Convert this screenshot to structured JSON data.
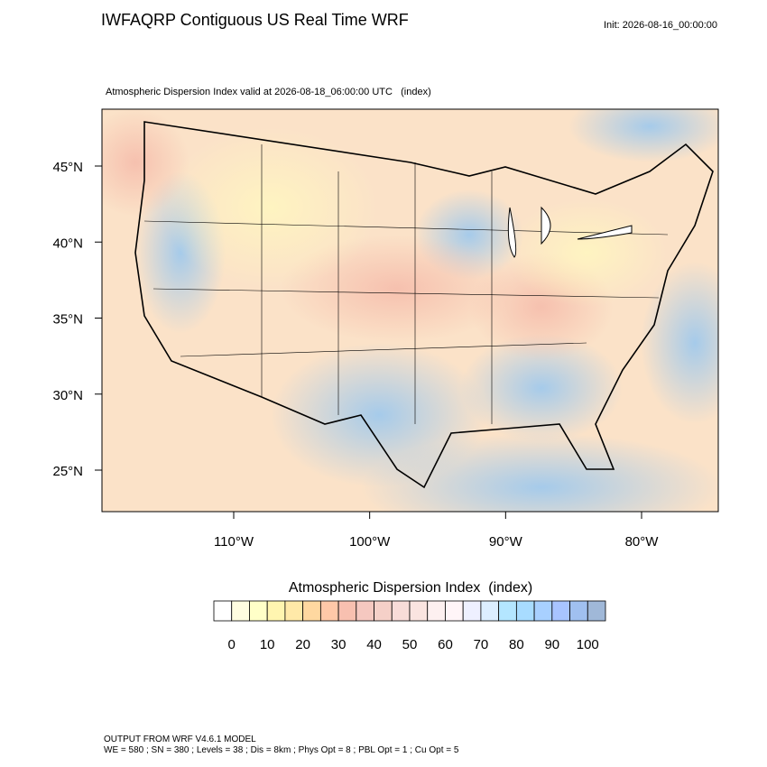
{
  "header": {
    "title": "IWFAQRP Contiguous US Real Time WRF",
    "init": "Init: 2026-08-16_00:00:00"
  },
  "map": {
    "subtitle": "Atmospheric Dispersion Index valid at 2026-08-18_06:00:00 UTC   (index)",
    "lat_ticks": [
      {
        "value": 45,
        "label": "45°N"
      },
      {
        "value": 40,
        "label": "40°N"
      },
      {
        "value": 35,
        "label": "35°N"
      },
      {
        "value": 30,
        "label": "30°N"
      },
      {
        "value": 25,
        "label": "25°N"
      }
    ],
    "lon_ticks": [
      {
        "value": -110,
        "label": "110°W"
      },
      {
        "value": -100,
        "label": "100°W"
      },
      {
        "value": -90,
        "label": "90°W"
      },
      {
        "value": -80,
        "label": "80°W"
      }
    ]
  },
  "colorbar": {
    "title": "Atmospheric Dispersion Index  (index)",
    "ticks": [
      0,
      10,
      20,
      30,
      40,
      50,
      60,
      70,
      80,
      90,
      100
    ],
    "colors": [
      "#ffffff",
      "#fffde0",
      "#ffffc8",
      "#fff5b0",
      "#ffe9a8",
      "#ffd8a0",
      "#ffc8a8",
      "#f8c0b0",
      "#f5c8c0",
      "#f5d0c8",
      "#f8dcd8",
      "#fae4e0",
      "#fdf0f0",
      "#fff5f8",
      "#eef0ff",
      "#dceeff",
      "#b4e6ff",
      "#a8dcff",
      "#a8d0ff",
      "#a8c4ff",
      "#a0c0f0",
      "#a0b8d8"
    ]
  },
  "footer": {
    "line1": "OUTPUT FROM WRF V4.6.1 MODEL",
    "line2": "WE = 580 ; SN = 380 ; Levels = 38 ; Dis = 8km ; Phys Opt = 8 ; PBL Opt = 1 ; Cu Opt = 5"
  }
}
